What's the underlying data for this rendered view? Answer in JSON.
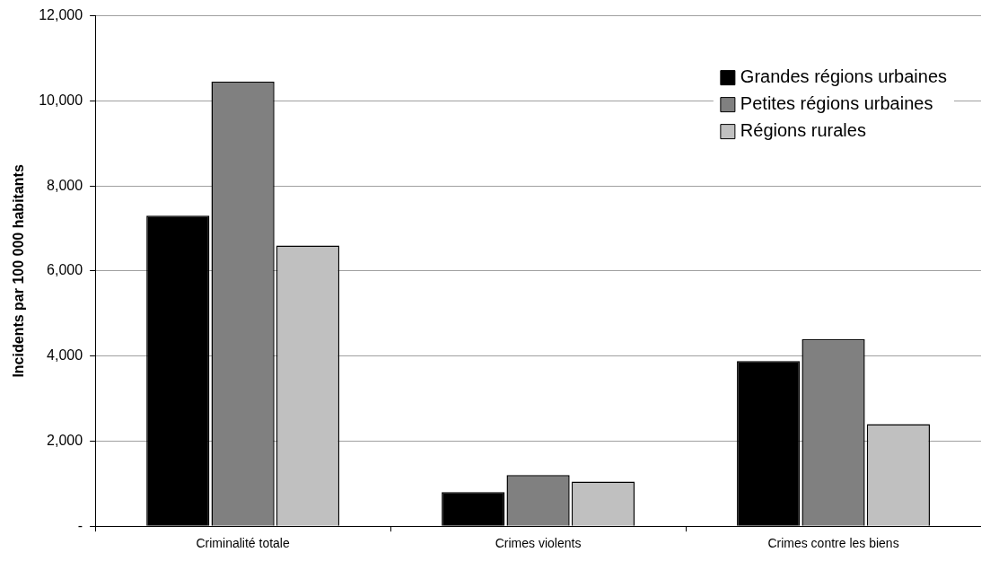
{
  "chart_data": {
    "type": "bar",
    "ylabel": "Incidents par 100 000 habitants",
    "categories": [
      "Criminalité totale",
      "Crimes violents",
      "Crimes contre les biens"
    ],
    "series": [
      {
        "name": "Grandes régions urbaines",
        "color": "#000000",
        "values": [
          7300,
          800,
          3880
        ]
      },
      {
        "name": "Petites régions urbaines",
        "color": "#808080",
        "values": [
          10450,
          1200,
          4400
        ]
      },
      {
        "name": "Régions rurales",
        "color": "#c0c0c0",
        "values": [
          6600,
          1050,
          2400
        ]
      }
    ],
    "ylim": [
      0,
      12000
    ],
    "yticks": [
      {
        "value": 0,
        "label": "-"
      },
      {
        "value": 2000,
        "label": "2,000"
      },
      {
        "value": 4000,
        "label": "4,000"
      },
      {
        "value": 6000,
        "label": "6,000"
      },
      {
        "value": 8000,
        "label": "8,000"
      },
      {
        "value": 10000,
        "label": "10,000"
      },
      {
        "value": 12000,
        "label": "12,000"
      }
    ],
    "grid": "y",
    "legend": "top right"
  }
}
